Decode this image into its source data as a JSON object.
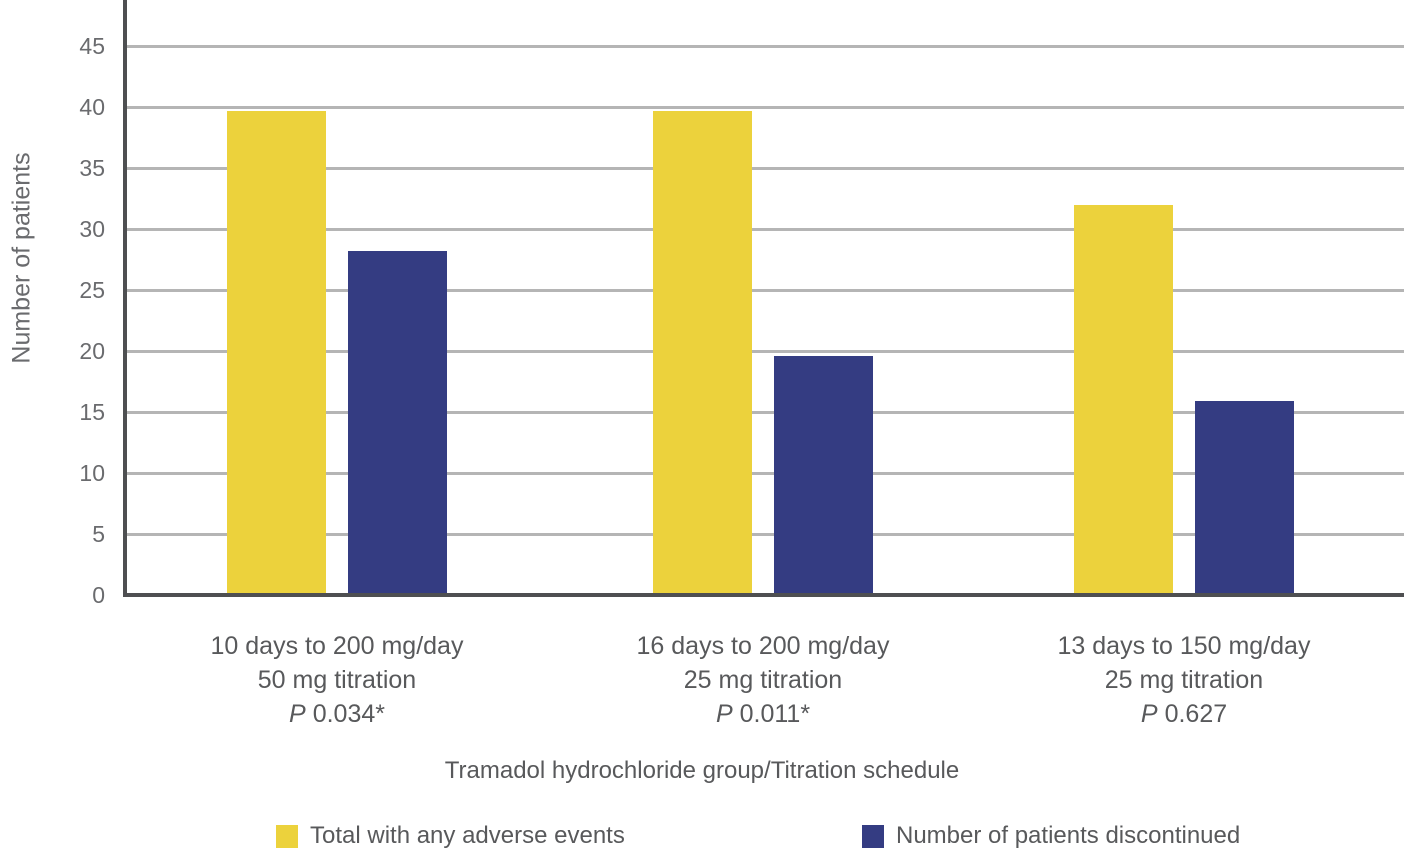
{
  "chart_data": {
    "type": "bar",
    "title": "",
    "xlabel": "Tramadol hydrochloride group/Titration schedule",
    "ylabel": "Number of patients",
    "ylim": [
      0,
      45
    ],
    "yticks": [
      0,
      5,
      10,
      15,
      20,
      25,
      30,
      35,
      40,
      45
    ],
    "grid": "horizontal-gridlines",
    "legend_position": "bottom",
    "p_symbol": "P",
    "categories": [
      {
        "line1": "10 days to 200 mg/day",
        "line2": "50 mg titration",
        "p_value": "0.034*"
      },
      {
        "line1": "16 days to 200 mg/day",
        "line2": "25 mg titration",
        "p_value": "0.011*"
      },
      {
        "line1": "13 days to 150 mg/day",
        "line2": "25 mg titration",
        "p_value": "0.627"
      }
    ],
    "series": [
      {
        "name": "Total with any adverse events",
        "color": "#ECD23C",
        "values": [
          39.5,
          39.5,
          31.8
        ]
      },
      {
        "name": "Number of patients discontinued",
        "color": "#343C82",
        "values": [
          28,
          19.4,
          15.7
        ]
      }
    ]
  },
  "style": {
    "background": "#FFFFFF",
    "grid_color": "#B5B5B5",
    "axis_color": "#4E4F51",
    "label_color": "#58595B",
    "tick_color": "#6A6B6E"
  }
}
